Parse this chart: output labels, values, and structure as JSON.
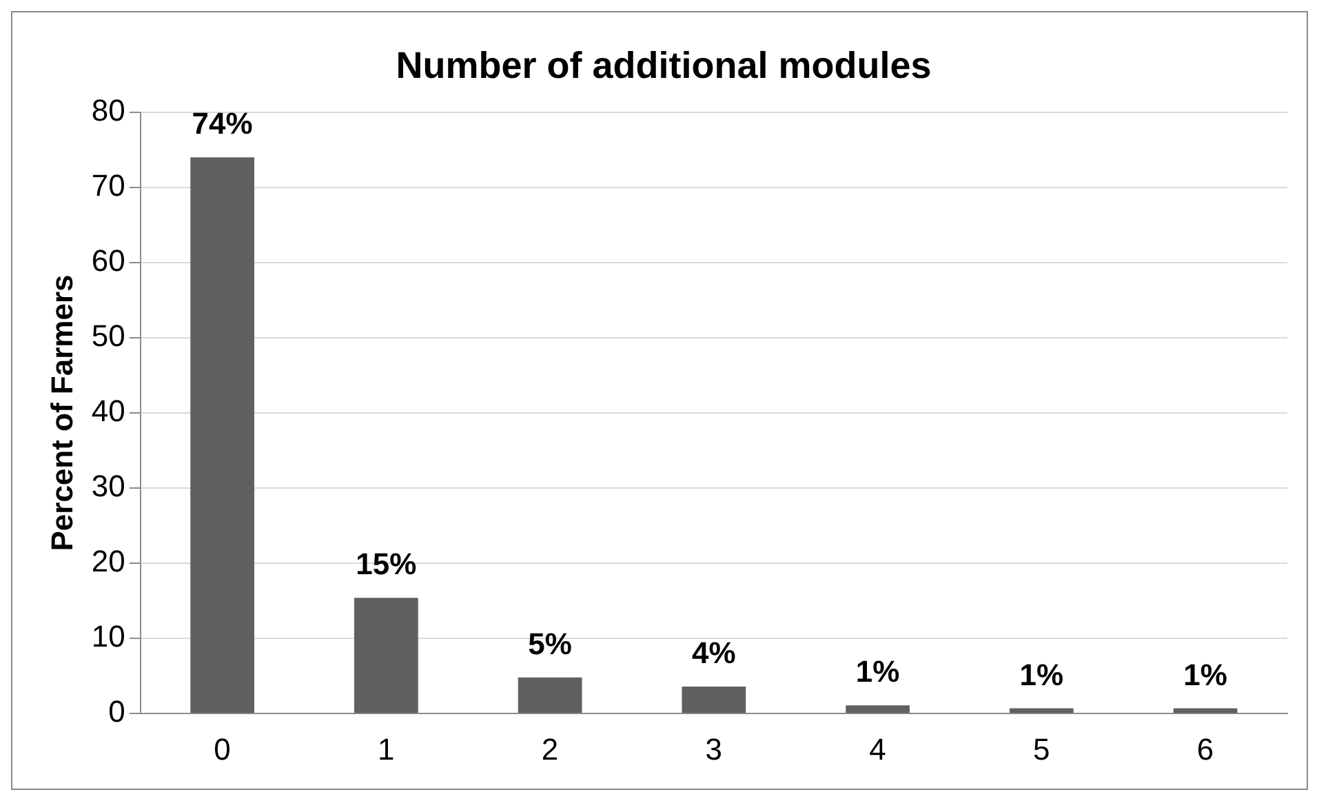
{
  "chart_data": {
    "type": "bar",
    "title": "Number of additional modules",
    "ylabel": "Percent of Farmers",
    "categories": [
      "0",
      "1",
      "2",
      "3",
      "4",
      "5",
      "6"
    ],
    "values": [
      74,
      15.4,
      4.8,
      3.6,
      1.1,
      0.7,
      0.7
    ],
    "value_labels": [
      "74%",
      "15%",
      "5%",
      "4%",
      "1%",
      "1%",
      "1%"
    ],
    "color": "#606060",
    "ylim": [
      0,
      80
    ],
    "yticks": [
      0,
      10,
      20,
      30,
      40,
      50,
      60,
      70,
      80
    ],
    "grid": "y",
    "legend": false
  }
}
